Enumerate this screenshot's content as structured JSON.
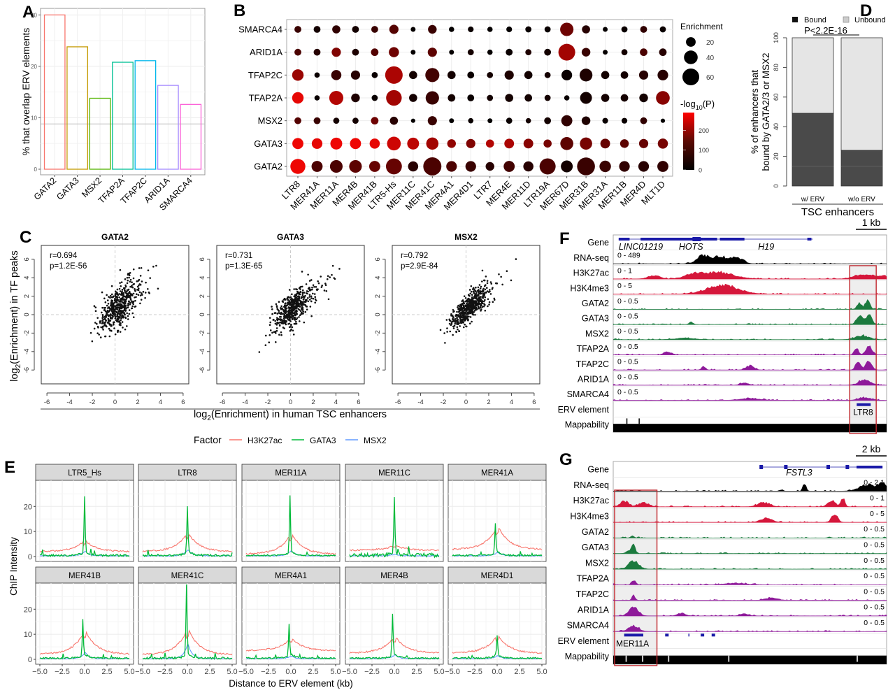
{
  "panels": {
    "A": "A",
    "B": "B",
    "C": "C",
    "D": "D",
    "E": "E",
    "F": "F",
    "G": "G"
  },
  "chart_data": [
    {
      "id": "A",
      "type": "bar",
      "title": "",
      "xlabel": "",
      "ylabel": "% that overlap ERV elements",
      "categories": [
        "GATA2",
        "GATA3",
        "MSX2",
        "TFAP2A",
        "TFAP2C",
        "ARID1A",
        "SMARCA4"
      ],
      "values": [
        30.0,
        23.8,
        13.8,
        20.8,
        21.1,
        16.3,
        12.6
      ],
      "colors": [
        "#f8766d",
        "#c49a00",
        "#53b400",
        "#00c094",
        "#00b6eb",
        "#a58aff",
        "#fb61d7"
      ],
      "reference_line": 8.8,
      "ylim": [
        0,
        31
      ],
      "yticks": [
        0,
        10,
        20,
        30
      ],
      "grid": true
    },
    {
      "id": "B",
      "type": "scatter",
      "subtype": "dotplot",
      "rows": [
        "GATA2",
        "GATA3",
        "MSX2",
        "TFAP2A",
        "TFAP2C",
        "ARID1A",
        "SMARCA4"
      ],
      "columns": [
        "LTR8",
        "MER41A",
        "MER11A",
        "MER4B",
        "MER41B",
        "LTR5-Hs",
        "MER11C",
        "MER41C",
        "MER4A1",
        "MER4D1",
        "LTR7",
        "MER4E",
        "MER11D",
        "LTR19A",
        "MER67D",
        "MER31B",
        "MER31A",
        "MER11B",
        "MER4D",
        "MLT1D"
      ],
      "enrichment": {
        "SMARCA4": [
          10,
          10,
          14,
          10,
          10,
          18,
          5,
          16,
          6,
          7,
          6,
          7,
          8,
          8,
          38,
          14,
          5,
          8,
          10,
          8
        ],
        "ARID1A": [
          10,
          10,
          18,
          10,
          12,
          22,
          5,
          18,
          5,
          8,
          6,
          10,
          8,
          10,
          60,
          16,
          5,
          8,
          12,
          12
        ],
        "TFAP2C": [
          28,
          6,
          22,
          18,
          8,
          65,
          14,
          42,
          14,
          10,
          8,
          18,
          14,
          8,
          24,
          35,
          14,
          12,
          18,
          24
        ],
        "TFAP2A": [
          28,
          6,
          42,
          16,
          8,
          52,
          14,
          38,
          12,
          10,
          8,
          14,
          12,
          8,
          6,
          30,
          14,
          12,
          16,
          40
        ],
        "MSX2": [
          10,
          10,
          8,
          8,
          12,
          14,
          4,
          18,
          5,
          6,
          5,
          8,
          6,
          10,
          26,
          16,
          7,
          7,
          10,
          4
        ],
        "GATA3": [
          26,
          24,
          30,
          26,
          22,
          40,
          30,
          32,
          16,
          18,
          14,
          20,
          20,
          14,
          36,
          32,
          20,
          16,
          18,
          22
        ],
        "GATA2": [
          48,
          26,
          34,
          34,
          26,
          54,
          22,
          70,
          24,
          24,
          16,
          26,
          22,
          55,
          30,
          68,
          28,
          24,
          24,
          26
        ]
      },
      "neglog10p": {
        "SMARCA4": [
          60,
          20,
          50,
          20,
          60,
          90,
          5,
          60,
          5,
          10,
          5,
          5,
          10,
          10,
          120,
          40,
          5,
          10,
          50,
          10
        ],
        "ARID1A": [
          80,
          40,
          140,
          30,
          90,
          120,
          5,
          100,
          5,
          20,
          5,
          10,
          30,
          20,
          180,
          60,
          5,
          20,
          80,
          40
        ],
        "TFAP2C": [
          170,
          10,
          60,
          40,
          10,
          190,
          20,
          70,
          20,
          10,
          20,
          30,
          20,
          20,
          10,
          30,
          20,
          20,
          40,
          40
        ],
        "TFAP2A": [
          260,
          10,
          200,
          30,
          10,
          180,
          20,
          60,
          20,
          10,
          20,
          20,
          20,
          20,
          10,
          20,
          20,
          20,
          20,
          150
        ],
        "MSX2": [
          90,
          60,
          20,
          20,
          120,
          40,
          5,
          60,
          5,
          10,
          5,
          10,
          20,
          20,
          50,
          30,
          10,
          10,
          50,
          5
        ],
        "GATA3": [
          270,
          260,
          270,
          270,
          260,
          230,
          210,
          180,
          160,
          140,
          200,
          190,
          150,
          130,
          100,
          130,
          110,
          100,
          110,
          130
        ],
        "GATA2": [
          270,
          80,
          80,
          100,
          110,
          110,
          40,
          80,
          80,
          60,
          40,
          70,
          40,
          80,
          20,
          60,
          60,
          50,
          40,
          50
        ]
      },
      "size_legend": {
        "title": "Enrichment",
        "values": [
          20,
          40,
          60
        ]
      },
      "color_legend": {
        "title": "-log10(P)",
        "ticks": [
          0,
          100,
          200
        ],
        "range": [
          0,
          290
        ],
        "low": "#000000",
        "high": "#ff0000"
      }
    },
    {
      "id": "C",
      "type": "scatter",
      "xlabel": "log2(Enrichment) in human TSC enhancers",
      "ylabel": "log2(Enrichment) in TF peaks",
      "xlim": [
        -6.5,
        6.5
      ],
      "ylim": [
        -7.5,
        7.5
      ],
      "xticks": [
        -6,
        -4,
        -2,
        0,
        2,
        4,
        6
      ],
      "yticks": [
        -6,
        -4,
        -2,
        0,
        2,
        4,
        6
      ],
      "facets": [
        {
          "title": "GATA2",
          "r": "r=0.694",
          "p": "p=1.2E-56",
          "r_value": 0.694,
          "slope": 0.95,
          "spread": 1.15,
          "seed": 11
        },
        {
          "title": "GATA3",
          "r": "r=0.731",
          "p": "p=1.3E-65",
          "r_value": 0.731,
          "slope": 0.95,
          "spread": 1.0,
          "seed": 23
        },
        {
          "title": "MSX2",
          "r": "r=0.792",
          "p": "p=2.9E-84",
          "r_value": 0.792,
          "slope": 1.0,
          "spread": 0.85,
          "seed": 37
        }
      ],
      "n_points": 520
    },
    {
      "id": "D",
      "type": "bar",
      "subtype": "stacked",
      "categories": [
        "w/ ERV",
        "w/o ERV"
      ],
      "series": [
        {
          "name": "Bound",
          "values": [
            49,
            24
          ],
          "color": "#4a4a4a"
        },
        {
          "name": "Unbound",
          "values": [
            51,
            76
          ],
          "color": "#e5e5e5"
        }
      ],
      "ylabel_line1": "% of enhancers that",
      "ylabel_line2": "bound by GATA2/3 or MSX2",
      "xlabel": "TSC enhancers",
      "annotation": "P<2.2E-16",
      "ylim": [
        0,
        100
      ],
      "yticks": [
        0,
        20,
        40,
        60,
        80,
        100
      ],
      "legend": "top"
    },
    {
      "id": "E",
      "type": "line",
      "xlabel": "Distance to ERV element (kb)",
      "ylabel": "ChIP Intensity",
      "xlim": [
        -5,
        5
      ],
      "ylim": [
        -1,
        30
      ],
      "xticks": [
        "-5.0",
        "-2.5",
        "0.0",
        "2.5",
        "5.0"
      ],
      "yticks": [
        0,
        10,
        20
      ],
      "legend_title": "Factor",
      "legend_position": "top",
      "series_meta": [
        {
          "name": "H3K27ac",
          "color": "#f8766d"
        },
        {
          "name": "GATA3",
          "color": "#00ba38"
        },
        {
          "name": "MSX2",
          "color": "#619cff"
        }
      ],
      "facets": [
        {
          "title": "LTR5_Hs",
          "h3k27ac_base": 2.0,
          "h3k27ac_peak": 6.5,
          "gata3_peak": 22,
          "gata3_offset": 0.0,
          "msx2_peak": 2.3,
          "noise": 0.8
        },
        {
          "title": "LTR8",
          "h3k27ac_base": 2.0,
          "h3k27ac_peak": 9.8,
          "gata3_peak": 18,
          "gata3_offset": 0.0,
          "msx2_peak": 2.8,
          "noise": 0.8
        },
        {
          "title": "MER11A",
          "h3k27ac_base": 1.0,
          "h3k27ac_peak": 9.5,
          "gata3_peak": 23,
          "gata3_offset": -0.1,
          "msx2_peak": 2.5,
          "noise": 0.5
        },
        {
          "title": "MER11C",
          "h3k27ac_base": 2.5,
          "h3k27ac_peak": 4.5,
          "gata3_peak": 21,
          "gata3_offset": 0.0,
          "msx2_peak": 1.0,
          "noise": 1.6
        },
        {
          "title": "MER41A",
          "h3k27ac_base": 2.8,
          "h3k27ac_peak": 12.5,
          "gata3_peak": 12,
          "gata3_offset": -0.2,
          "msx2_peak": 1.8,
          "noise": 0.6
        },
        {
          "title": "MER41B",
          "h3k27ac_base": 2.0,
          "h3k27ac_peak": 12.0,
          "gata3_peak": 14.5,
          "gata3_offset": -0.2,
          "msx2_peak": 2.8,
          "noise": 0.6
        },
        {
          "title": "MER41C",
          "h3k27ac_base": 1.8,
          "h3k27ac_peak": 12.5,
          "gata3_peak": 28,
          "gata3_offset": -0.1,
          "msx2_peak": 6.5,
          "noise": 0.8
        },
        {
          "title": "MER4A1",
          "h3k27ac_base": 3.5,
          "h3k27ac_peak": 8.5,
          "gata3_peak": 13,
          "gata3_offset": -0.2,
          "msx2_peak": 1.3,
          "noise": 0.6
        },
        {
          "title": "MER4B",
          "h3k27ac_base": 2.5,
          "h3k27ac_peak": 9.5,
          "gata3_peak": 16.5,
          "gata3_offset": -0.2,
          "msx2_peak": 1.8,
          "noise": 0.6
        },
        {
          "title": "MER4D1",
          "h3k27ac_base": 2.5,
          "h3k27ac_peak": 10.0,
          "gata3_peak": 7.5,
          "gata3_offset": 0.0,
          "msx2_peak": 1.5,
          "noise": 0.6
        }
      ]
    }
  ],
  "tracks_F": {
    "scale_label": "1 kb",
    "genes": [
      "LINC01219",
      "HOTS",
      "H19"
    ],
    "erv_label": "LTR8",
    "rows": [
      {
        "label": "Gene",
        "range": "",
        "color": "#1a1aa8",
        "kind": "gene"
      },
      {
        "label": "RNA-seq",
        "range": "0 - 489",
        "color": "#000000",
        "kind": "signal"
      },
      {
        "label": "H3K27ac",
        "range": "0 - 1",
        "color": "#d5173b",
        "kind": "signal"
      },
      {
        "label": "H3K4me3",
        "range": "0 - 5",
        "color": "#d5173b",
        "kind": "signal"
      },
      {
        "label": "GATA2",
        "range": "0 - 0.5",
        "color": "#1b7a3e",
        "kind": "signal"
      },
      {
        "label": "GATA3",
        "range": "0 - 0.5",
        "color": "#1b7a3e",
        "kind": "signal"
      },
      {
        "label": "MSX2",
        "range": "0 - 0.5",
        "color": "#1b7a3e",
        "kind": "signal"
      },
      {
        "label": "TFAP2A",
        "range": "0 - 0.5",
        "color": "#8e1a9a",
        "kind": "signal"
      },
      {
        "label": "TFAP2C",
        "range": "0 - 0.5",
        "color": "#8e1a9a",
        "kind": "signal"
      },
      {
        "label": "ARID1A",
        "range": "0 - 0.5",
        "color": "#8e1a9a",
        "kind": "signal"
      },
      {
        "label": "SMARCA4",
        "range": "0 - 0.5",
        "color": "#8e1a9a",
        "kind": "signal"
      },
      {
        "label": "ERV element",
        "range": "",
        "color": "#1a1aa8",
        "kind": "erv"
      },
      {
        "label": "Mappability",
        "range": "",
        "color": "#000000",
        "kind": "map"
      }
    ]
  },
  "tracks_G": {
    "scale_label": "2 kb",
    "genes": [
      "FSTL3"
    ],
    "erv_label": "MER11A",
    "rows": [
      {
        "label": "Gene",
        "range": "",
        "color": "#1a1aa8",
        "kind": "gene"
      },
      {
        "label": "RNA-seq",
        "range": "0 - 2.1",
        "color": "#000000",
        "kind": "signal"
      },
      {
        "label": "H3K27ac",
        "range": "0 - 1",
        "color": "#d5173b",
        "kind": "signal"
      },
      {
        "label": "H3K4me3",
        "range": "0 - 5",
        "color": "#d5173b",
        "kind": "signal"
      },
      {
        "label": "GATA2",
        "range": "0 - 0.5",
        "color": "#1b7a3e",
        "kind": "signal"
      },
      {
        "label": "GATA3",
        "range": "0 - 0.5",
        "color": "#1b7a3e",
        "kind": "signal"
      },
      {
        "label": "MSX2",
        "range": "0 - 0.5",
        "color": "#1b7a3e",
        "kind": "signal"
      },
      {
        "label": "TFAP2A",
        "range": "0 - 0.5",
        "color": "#8e1a9a",
        "kind": "signal"
      },
      {
        "label": "TFAP2C",
        "range": "0 - 0.5",
        "color": "#8e1a9a",
        "kind": "signal"
      },
      {
        "label": "ARID1A",
        "range": "0 - 0.5",
        "color": "#8e1a9a",
        "kind": "signal"
      },
      {
        "label": "SMARCA4",
        "range": "0 - 0.5",
        "color": "#8e1a9a",
        "kind": "signal"
      },
      {
        "label": "ERV element",
        "range": "",
        "color": "#1a1aa8",
        "kind": "erv"
      },
      {
        "label": "Mappability",
        "range": "",
        "color": "#000000",
        "kind": "map"
      }
    ]
  }
}
